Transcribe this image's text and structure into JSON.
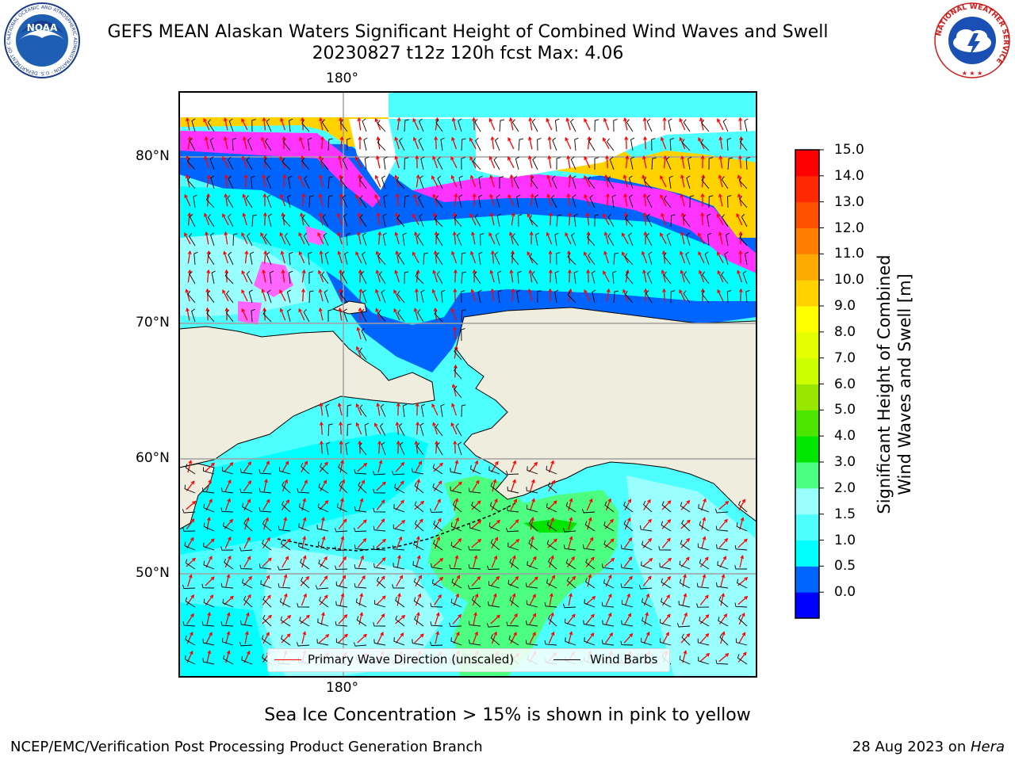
{
  "title_line1": "GEFS MEAN Alaskan Waters Significant Height of Combined Wind Waves and Swell",
  "title_line2": "20230827 t12z 120h fcst   Max: 4.06",
  "logos": {
    "left_text": "NOAA",
    "left_ring": "NATIONAL OCEANIC AND ATMOSPHERIC ADMINISTRATION · U.S. DEPARTMENT OF COMMERCE",
    "right_ring": "NATIONAL WEATHER SERVICE"
  },
  "axes": {
    "top_lon": "180°",
    "bottom_lon": "180°",
    "lat_labels": [
      "80°N",
      "70°N",
      "60°N",
      "50°N"
    ]
  },
  "legend": {
    "wave_label": "Primary Wave Direction (unscaled)",
    "barb_label": "Wind Barbs",
    "wave_color": "#ff0000",
    "barb_color": "#000000"
  },
  "colorbar": {
    "title_line1": "Significant Height of Combined",
    "title_line2": "Wind Waves and Swell [m]",
    "ticks": [
      "15.0",
      "14.0",
      "13.0",
      "12.0",
      "11.0",
      "10.0",
      "9.0",
      "8.0",
      "7.0",
      "6.0",
      "5.0",
      "4.0",
      "3.0",
      "2.0",
      "1.5",
      "1.0",
      "0.5",
      "0.0"
    ],
    "colors": [
      "#0000ff",
      "#0064ff",
      "#00ffff",
      "#4dffff",
      "#99ffff",
      "#4dff80",
      "#00e600",
      "#4de600",
      "#99e600",
      "#ccff00",
      "#e6ff00",
      "#ffff00",
      "#ffd200",
      "#ffaa00",
      "#ff8000",
      "#ff5000",
      "#ff2800",
      "#ff0000"
    ]
  },
  "land_color": "#efedde",
  "sea_ice_note": "Sea Ice Concentration > 15% is shown in pink to yellow",
  "footer_left": "NCEP/EMC/Verification Post Processing Product Generation Branch",
  "footer_right_date": "28 Aug 2023 on ",
  "footer_right_host": "Hera"
}
